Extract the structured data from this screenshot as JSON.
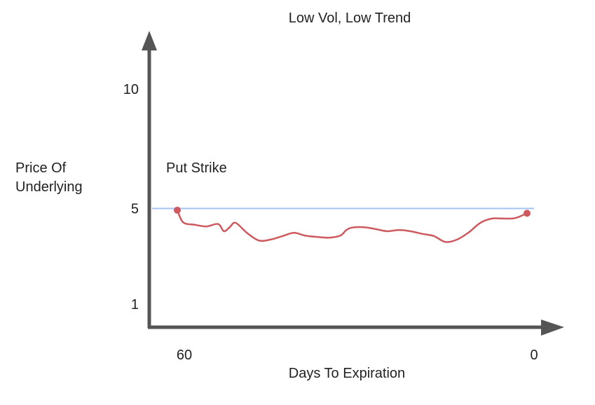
{
  "chart_data": {
    "type": "line",
    "title": "Low Vol, Low Trend",
    "xlabel": "Days To Expiration",
    "ylabel": [
      "Price Of",
      "Underlying"
    ],
    "x_ticks": [
      {
        "value": 60,
        "label": "60"
      },
      {
        "value": 0,
        "label": "0"
      }
    ],
    "y_ticks": [
      {
        "value": 10,
        "label": "10"
      },
      {
        "value": 5,
        "label": "5"
      },
      {
        "value": 1,
        "label": "1"
      }
    ],
    "reference_line": {
      "label": "Put Strike",
      "value": 5,
      "color": "#a4c2f4"
    },
    "series": [
      {
        "color": "#cc5a5f",
        "x": [
          60,
          59,
          57,
          55,
          53,
          52,
          51,
          50,
          48,
          46,
          44,
          42,
          40,
          38,
          36,
          34,
          32,
          31,
          30,
          28,
          26,
          24,
          22,
          20,
          18,
          16,
          14,
          12,
          10,
          8,
          6,
          4,
          2,
          0
        ],
        "y": [
          4.93,
          4.42,
          4.32,
          4.25,
          4.35,
          4.05,
          4.22,
          4.4,
          3.97,
          3.66,
          3.7,
          3.84,
          3.98,
          3.86,
          3.81,
          3.78,
          3.87,
          4.1,
          4.2,
          4.22,
          4.14,
          4.05,
          4.1,
          4.05,
          3.94,
          3.85,
          3.6,
          3.7,
          4.0,
          4.4,
          4.58,
          4.58,
          4.6,
          4.8
        ]
      }
    ],
    "xlim": [
      60,
      0
    ],
    "ylim": [
      1,
      10
    ],
    "grid": false,
    "axis_color": "#555555"
  }
}
